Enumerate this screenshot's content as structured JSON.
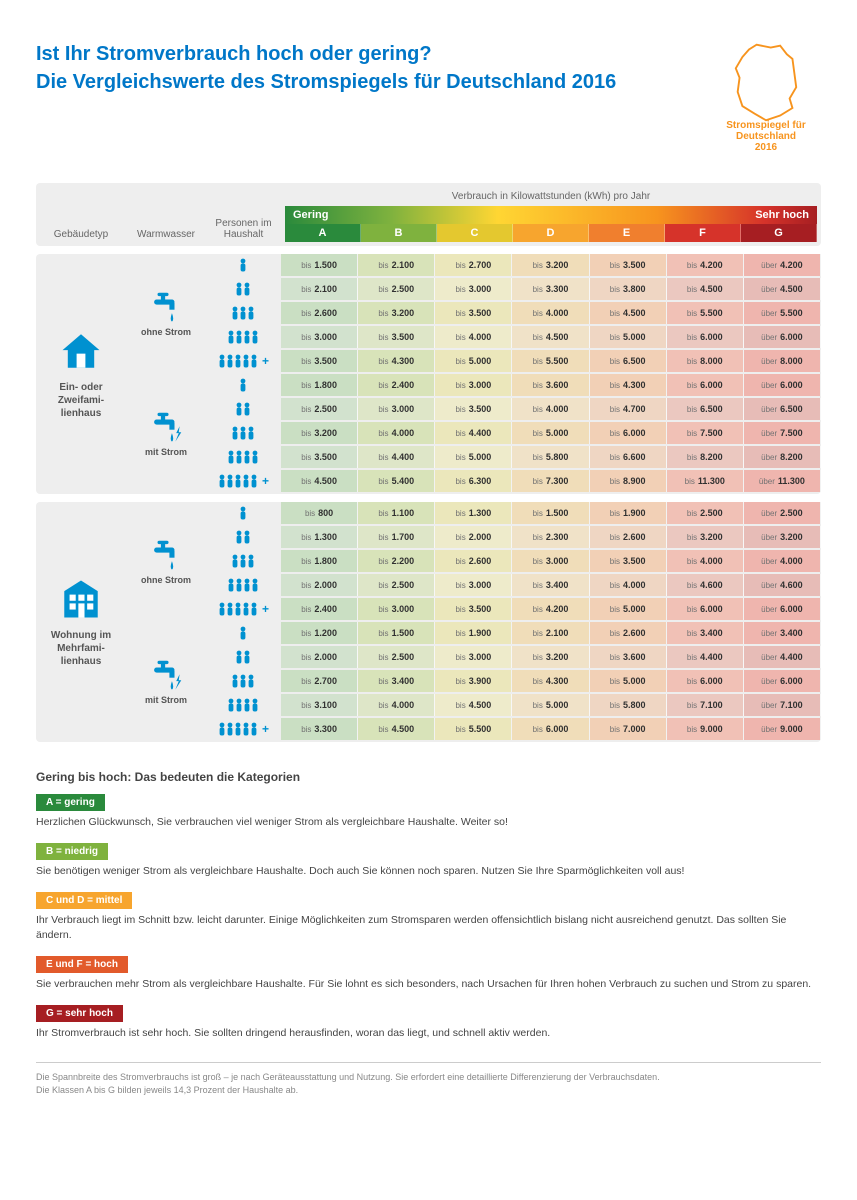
{
  "header": {
    "title_l1": "Ist Ihr Stromverbrauch hoch oder gering?",
    "title_l2": "Die Vergleichswerte des Stromspiegels für Deutschland 2016",
    "logo_l1": "Stromspiegel für",
    "logo_l2": "Deutschland",
    "logo_l3": "2016",
    "logo_color": "#f7941e"
  },
  "columns": {
    "building": "Gebäudetyp",
    "water": "Warmwasser",
    "persons": "Personen im Haushalt",
    "kwh": "Verbrauch in Kilowattstunden (kWh) pro Jahr",
    "low_label": "Gering",
    "high_label": "Sehr hoch",
    "letters": [
      "A",
      "B",
      "C",
      "D",
      "E",
      "F",
      "G"
    ],
    "letter_colors": [
      "#2a8a3c",
      "#7fb23e",
      "#e4c82f",
      "#f7a52e",
      "#f07f2e",
      "#d6332a",
      "#a61e22"
    ],
    "cell_bg_colors": [
      "#d9e9d4",
      "#e5edce",
      "#f5f2d1",
      "#f7e9ce",
      "#f6ddc9",
      "#f2cec6",
      "#eec2bd"
    ]
  },
  "accent_blue": "#0091d0",
  "buildings": [
    {
      "key": "house",
      "label": "Ein- oder Zweifami­lienhaus"
    },
    {
      "key": "apt",
      "label": "Wohnung im Mehrfami­lienhaus"
    }
  ],
  "water_modes": [
    {
      "key": "ohne",
      "label": "ohne Strom"
    },
    {
      "key": "mit",
      "label": "mit Strom"
    }
  ],
  "person_levels": [
    1,
    2,
    3,
    4,
    5
  ],
  "cell_prefix_bis": "bis",
  "cell_prefix_ueber": "über",
  "data": {
    "house": {
      "ohne": [
        [
          "1.500",
          "2.100",
          "2.700",
          "3.200",
          "3.500",
          "4.200",
          "4.200"
        ],
        [
          "2.100",
          "2.500",
          "3.000",
          "3.300",
          "3.800",
          "4.500",
          "4.500"
        ],
        [
          "2.600",
          "3.200",
          "3.500",
          "4.000",
          "4.500",
          "5.500",
          "5.500"
        ],
        [
          "3.000",
          "3.500",
          "4.000",
          "4.500",
          "5.000",
          "6.000",
          "6.000"
        ],
        [
          "3.500",
          "4.300",
          "5.000",
          "5.500",
          "6.500",
          "8.000",
          "8.000"
        ]
      ],
      "mit": [
        [
          "1.800",
          "2.400",
          "3.000",
          "3.600",
          "4.300",
          "6.000",
          "6.000"
        ],
        [
          "2.500",
          "3.000",
          "3.500",
          "4.000",
          "4.700",
          "6.500",
          "6.500"
        ],
        [
          "3.200",
          "4.000",
          "4.400",
          "5.000",
          "6.000",
          "7.500",
          "7.500"
        ],
        [
          "3.500",
          "4.400",
          "5.000",
          "5.800",
          "6.600",
          "8.200",
          "8.200"
        ],
        [
          "4.500",
          "5.400",
          "6.300",
          "7.300",
          "8.900",
          "11.300",
          "11.300"
        ]
      ]
    },
    "apt": {
      "ohne": [
        [
          "800",
          "1.100",
          "1.300",
          "1.500",
          "1.900",
          "2.500",
          "2.500"
        ],
        [
          "1.300",
          "1.700",
          "2.000",
          "2.300",
          "2.600",
          "3.200",
          "3.200"
        ],
        [
          "1.800",
          "2.200",
          "2.600",
          "3.000",
          "3.500",
          "4.000",
          "4.000"
        ],
        [
          "2.000",
          "2.500",
          "3.000",
          "3.400",
          "4.000",
          "4.600",
          "4.600"
        ],
        [
          "2.400",
          "3.000",
          "3.500",
          "4.200",
          "5.000",
          "6.000",
          "6.000"
        ]
      ],
      "mit": [
        [
          "1.200",
          "1.500",
          "1.900",
          "2.100",
          "2.600",
          "3.400",
          "3.400"
        ],
        [
          "2.000",
          "2.500",
          "3.000",
          "3.200",
          "3.600",
          "4.400",
          "4.400"
        ],
        [
          "2.700",
          "3.400",
          "3.900",
          "4.300",
          "5.000",
          "6.000",
          "6.000"
        ],
        [
          "3.100",
          "4.000",
          "4.500",
          "5.000",
          "5.800",
          "7.100",
          "7.100"
        ],
        [
          "3.300",
          "4.500",
          "5.500",
          "6.000",
          "7.000",
          "9.000",
          "9.000"
        ]
      ]
    }
  },
  "highlight_rows": {
    "house_ohne": [
      0,
      2,
      4
    ],
    "house_mit": [
      0,
      2,
      4
    ],
    "apt_ohne": [
      0,
      2,
      4
    ],
    "apt_mit": [
      0,
      2,
      4
    ]
  },
  "legend": {
    "title": "Gering bis hoch: Das bedeuten die Kategorien",
    "items": [
      {
        "tag": "A = gering",
        "bg": "#2a8a3c",
        "text": "Herzlichen Glückwunsch, Sie verbrauchen viel weniger Strom als vergleichbare Haushalte. Weiter so!"
      },
      {
        "tag": "B = niedrig",
        "bg": "#7fb23e",
        "text": "Sie benötigen weniger Strom als vergleichbare Haushalte. Doch auch Sie können noch sparen. Nutzen Sie Ihre Sparmöglichkeiten voll aus!"
      },
      {
        "tag": "C und D = mittel",
        "bg": "#f7a52e",
        "text": "Ihr Verbrauch liegt im Schnitt bzw. leicht darunter. Einige Möglichkeiten zum Stromsparen werden offensichtlich bislang nicht ausreichend genutzt. Das sollten Sie ändern."
      },
      {
        "tag": "E und F = hoch",
        "bg": "#e25a2b",
        "text": "Sie verbrauchen mehr Strom als vergleichbare Haushalte. Für Sie lohnt es sich besonders, nach Ursachen für Ihren hohen Verbrauch zu suchen und Strom zu sparen."
      },
      {
        "tag": "G = sehr hoch",
        "bg": "#a61e22",
        "text": "Ihr Stromverbrauch ist sehr hoch. Sie sollten dringend herausfinden, woran das liegt, und schnell aktiv werden."
      }
    ]
  },
  "footnote_l1": "Die Spannbreite des Stromverbrauchs ist groß – je nach Geräteausstattung und Nutzung. Sie erfordert eine detaillierte Differenzierung der Verbrauchsdaten.",
  "footnote_l2": "Die Klassen A bis G bilden jeweils 14,3 Prozent der Haushalte ab."
}
